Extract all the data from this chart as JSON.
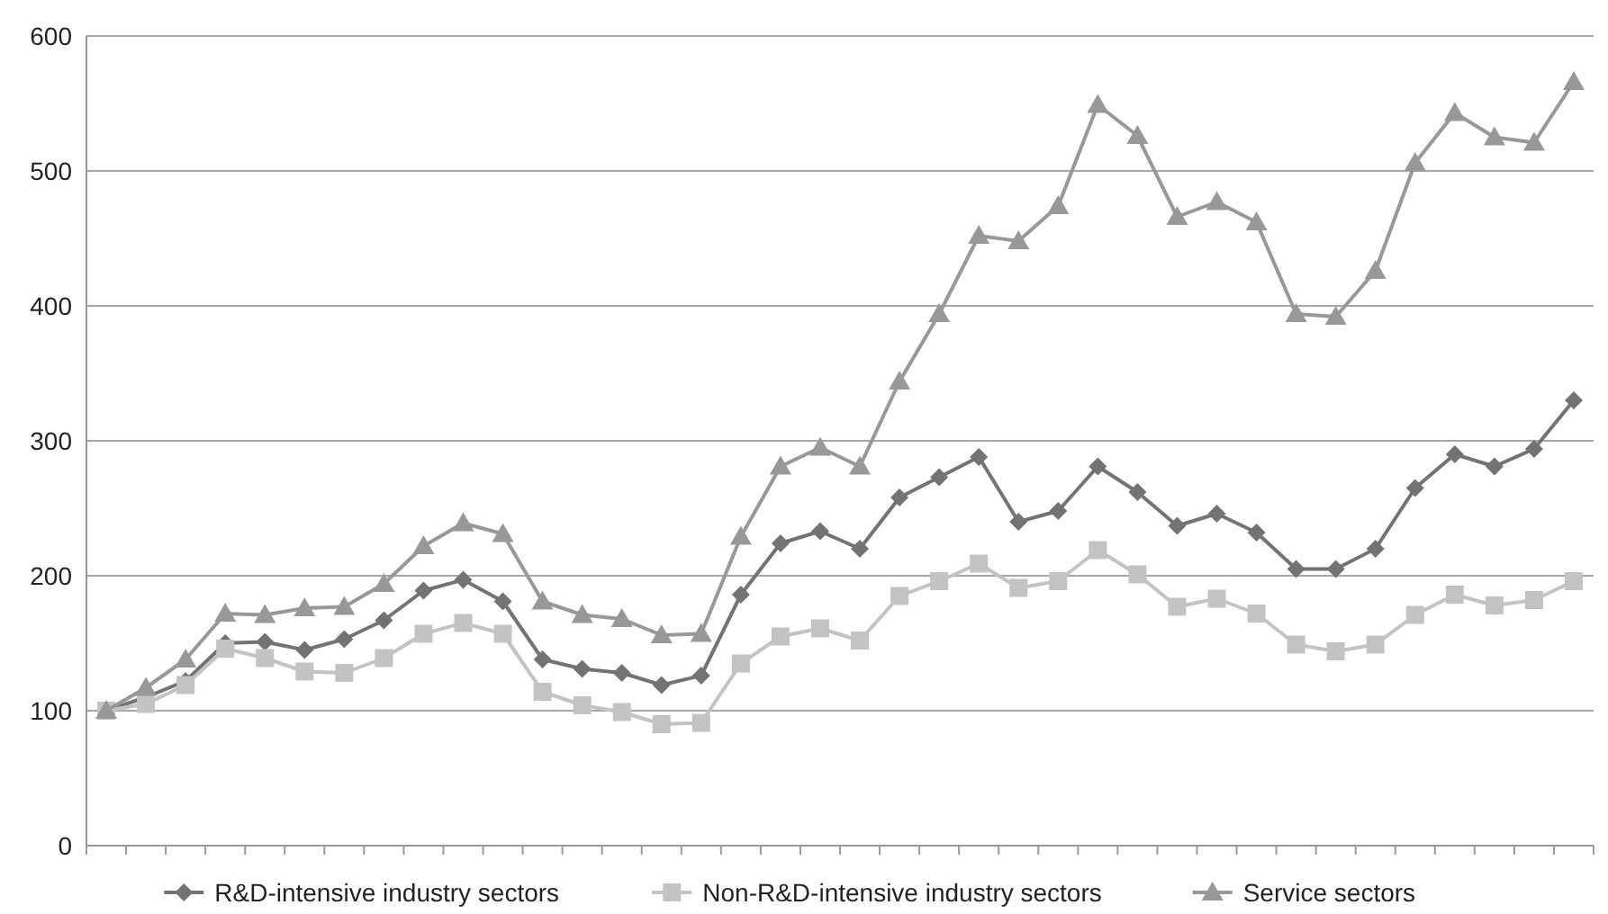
{
  "chart_data": {
    "type": "line",
    "categories": [
      null,
      null,
      null,
      null,
      null,
      null,
      null,
      null,
      null,
      null,
      null,
      null,
      null,
      null,
      null,
      null,
      null,
      null,
      null,
      null,
      null,
      null,
      null,
      null,
      null,
      null,
      null,
      null,
      null,
      null,
      null,
      null,
      null,
      null,
      null,
      null,
      null,
      null
    ],
    "series": [
      {
        "name": "R&D-intensive industry sectors",
        "color": "#737373",
        "marker": "diamond",
        "values": [
          100,
          110,
          122,
          150,
          151,
          145,
          153,
          167,
          189,
          197,
          181,
          138,
          131,
          128,
          119,
          126,
          186,
          224,
          233,
          220,
          258,
          273,
          288,
          240,
          248,
          281,
          262,
          237,
          246,
          232,
          205,
          205,
          220,
          265,
          290,
          281,
          294,
          330
        ]
      },
      {
        "name": "Non-R&D-intensive industry sectors",
        "color": "#c3c3c3",
        "marker": "square",
        "values": [
          100,
          105,
          119,
          146,
          139,
          129,
          128,
          139,
          157,
          165,
          157,
          114,
          104,
          99,
          90,
          91,
          135,
          155,
          161,
          152,
          185,
          196,
          209,
          191,
          196,
          219,
          201,
          177,
          183,
          172,
          149,
          144,
          149,
          171,
          186,
          178,
          182,
          196
        ]
      },
      {
        "name": "Service sectors",
        "color": "#989898",
        "marker": "triangle",
        "values": [
          100,
          117,
          138,
          172,
          171,
          176,
          177,
          194,
          222,
          239,
          231,
          181,
          171,
          168,
          156,
          157,
          229,
          281,
          295,
          281,
          344,
          394,
          452,
          448,
          474,
          549,
          526,
          466,
          477,
          462,
          394,
          392,
          426,
          506,
          543,
          525,
          521,
          566
        ]
      }
    ],
    "ylim": [
      0,
      600
    ],
    "yticks": [
      0,
      100,
      200,
      300,
      400,
      500,
      600
    ],
    "grid": "y",
    "legend": "bottom"
  }
}
